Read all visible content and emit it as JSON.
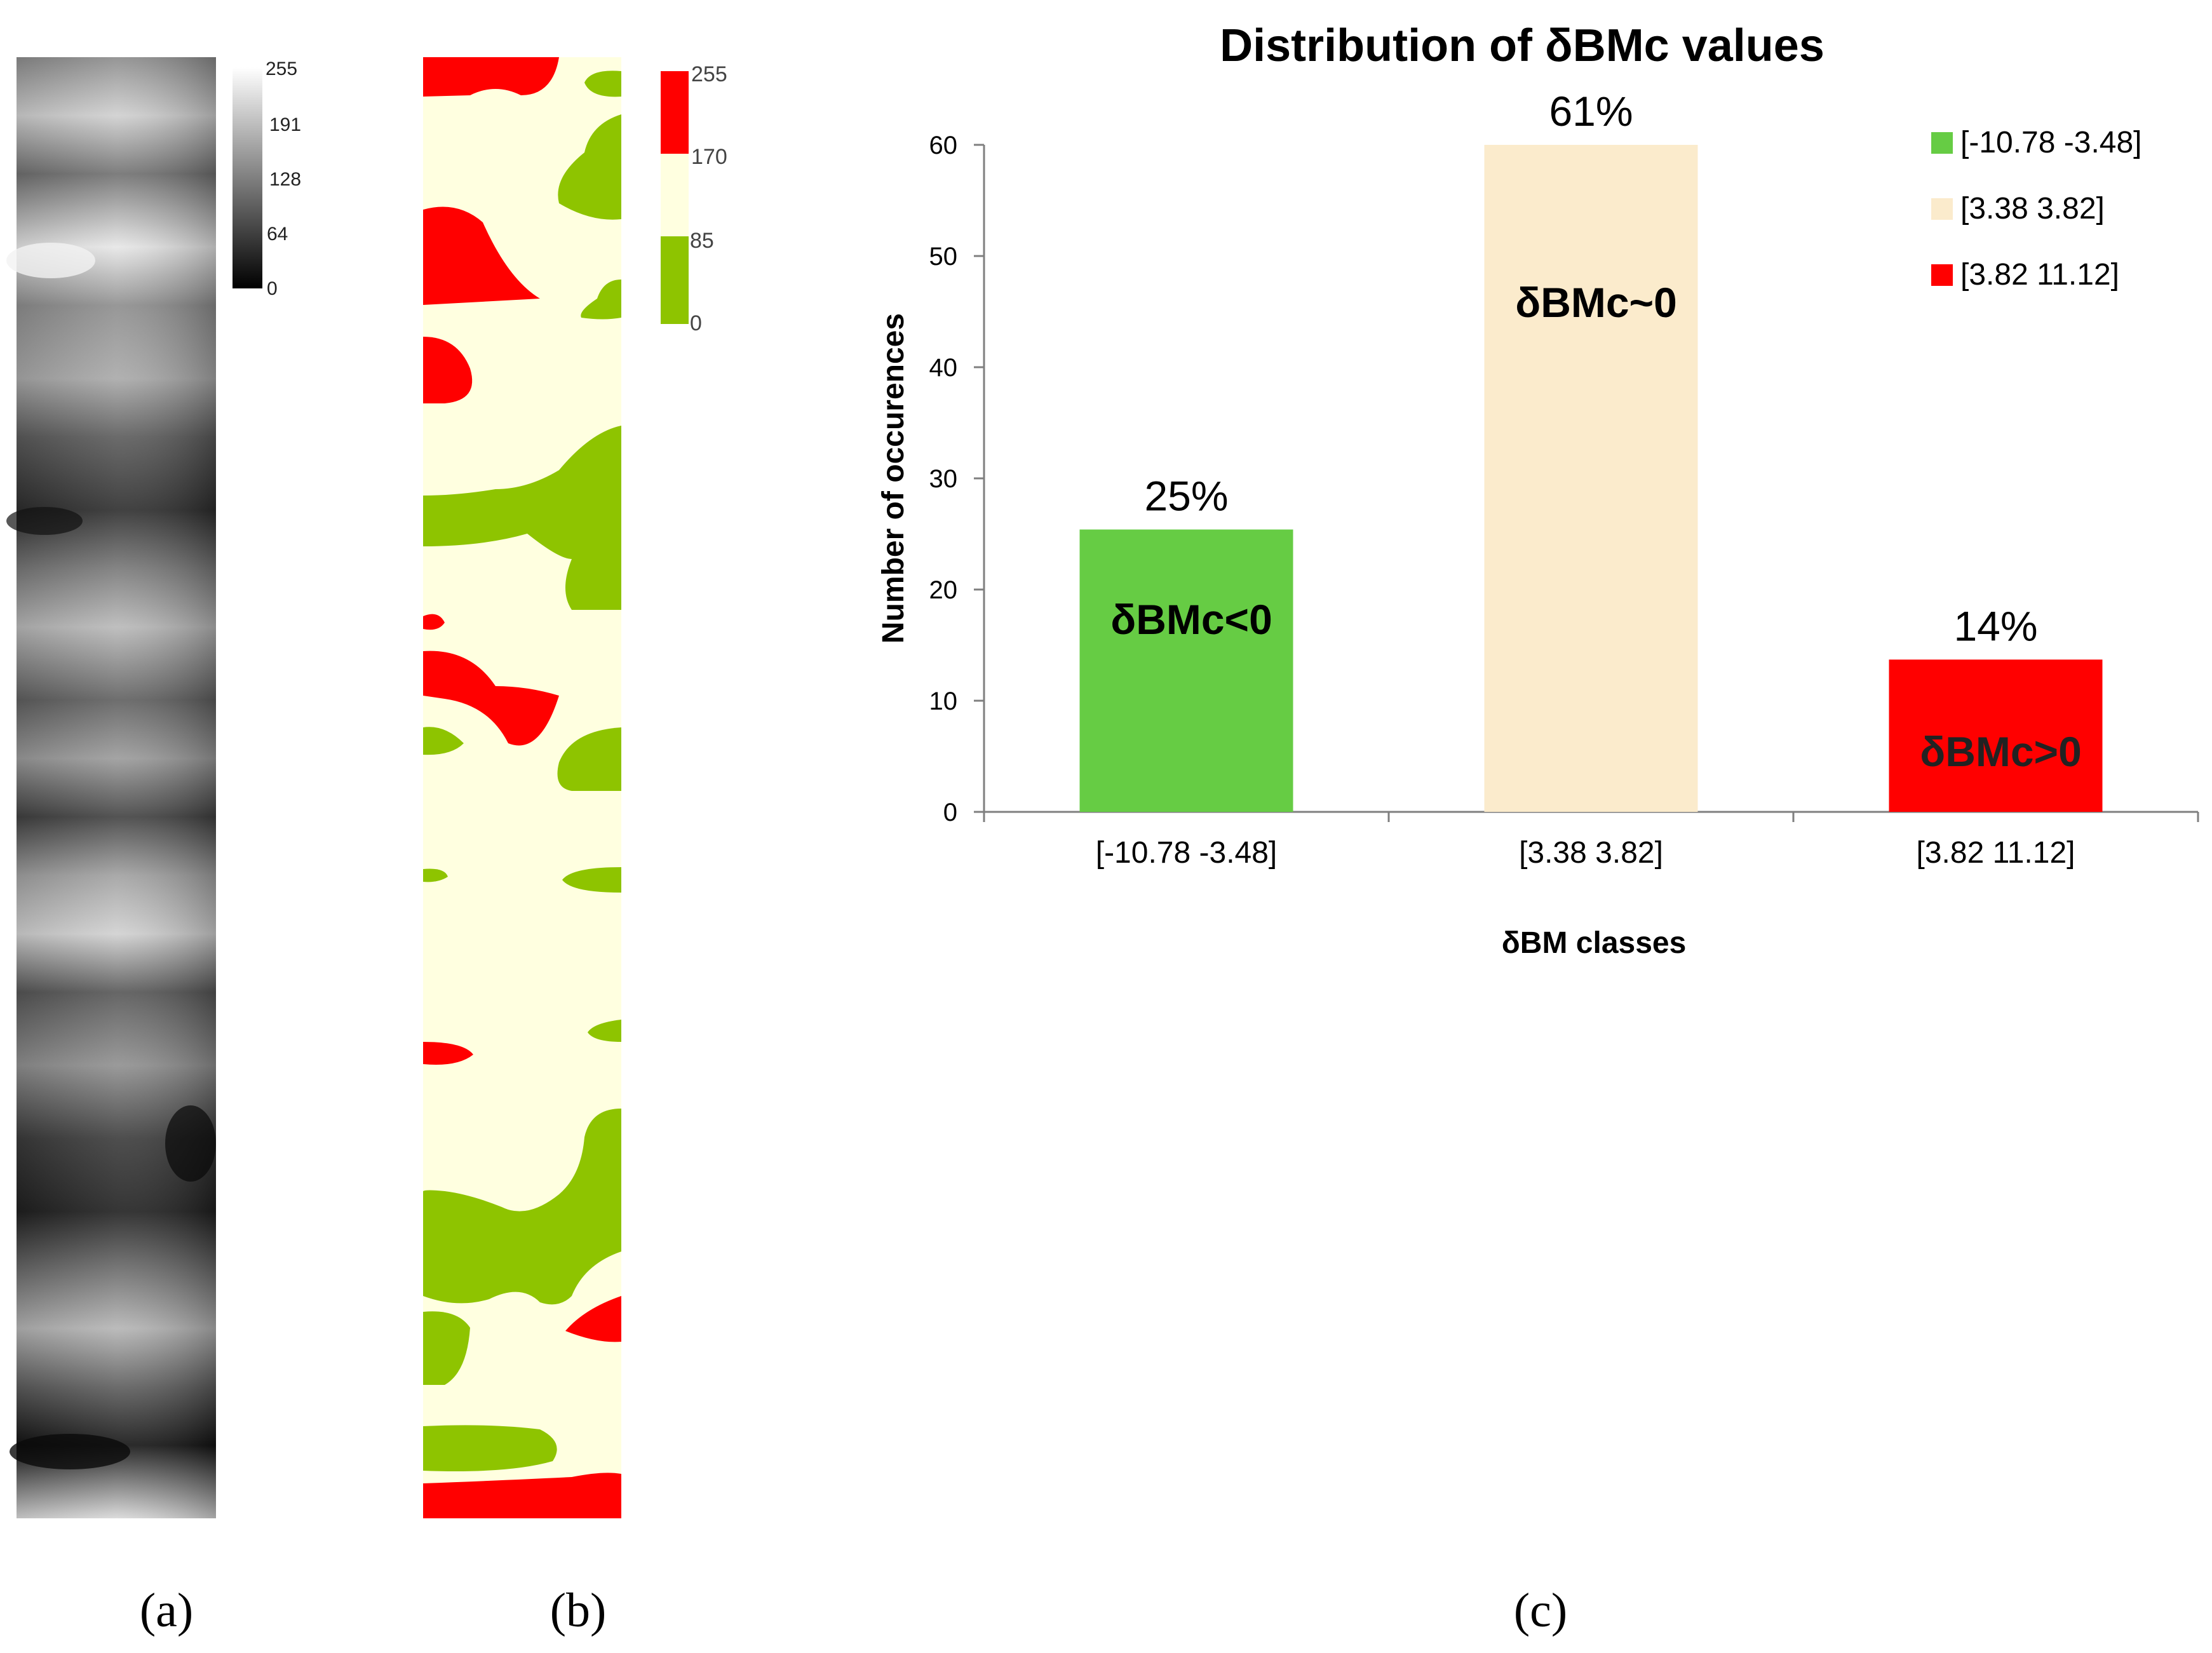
{
  "panels": {
    "a": {
      "label": "(a)",
      "colorbar_ticks": [
        "255",
        "191",
        "128",
        "64",
        "0"
      ]
    },
    "b": {
      "label": "(b)",
      "colorbar_ticks": [
        "255",
        "170",
        "85",
        "0"
      ],
      "class_colors": {
        "high": "#ff0000",
        "mid": "#ffffe0",
        "low": "#8ec400"
      }
    },
    "c": {
      "label": "(c)"
    }
  },
  "chart_data": {
    "type": "bar",
    "title": "Distribution of δBMc values",
    "xlabel": "δBM classes",
    "ylabel": "Number of occurences",
    "ylim": [
      0,
      60
    ],
    "yticks": [
      0,
      10,
      20,
      30,
      40,
      50,
      60
    ],
    "categories": [
      "[-10.78 -3.48]",
      "[3.38 3.82]",
      "[3.82 11.12]"
    ],
    "values": [
      25.4,
      60,
      13.7
    ],
    "percent_labels": [
      "25%",
      "61%",
      "14%"
    ],
    "bar_annotations": [
      "δBMc<0",
      "δBMc~0",
      "δBMc>0"
    ],
    "colors": [
      "#66cc44",
      "#fbebcc",
      "#ff0000"
    ],
    "legend": {
      "position": "top-right",
      "entries": [
        "[-10.78 -3.48]",
        "[3.38 3.82]",
        "[3.82 11.12]"
      ]
    },
    "grid": false
  }
}
